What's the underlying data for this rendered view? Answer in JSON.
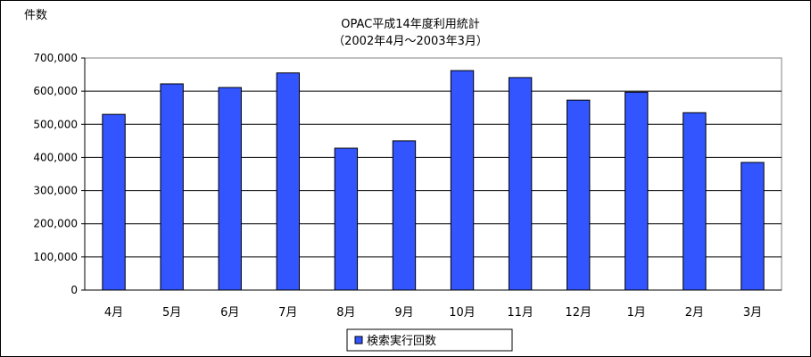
{
  "chart_data": {
    "type": "bar",
    "title": "OPAC平成14年度利用統計",
    "subtitle": "（2002年4月～2003年3月）",
    "ylabel": "件数",
    "xlabel": "",
    "categories": [
      "4月",
      "5月",
      "6月",
      "7月",
      "8月",
      "9月",
      "10月",
      "11月",
      "12月",
      "1月",
      "2月",
      "3月"
    ],
    "series": [
      {
        "name": "検索実行回数",
        "values": [
          530000,
          622000,
          611000,
          655000,
          428000,
          450000,
          662000,
          641000,
          573000,
          597000,
          535000,
          385000
        ]
      }
    ],
    "ylim": [
      0,
      700000
    ],
    "yticks": [
      0,
      100000,
      200000,
      300000,
      400000,
      500000,
      600000,
      700000
    ],
    "ytick_labels": [
      "0",
      "100,000",
      "200,000",
      "300,000",
      "400,000",
      "500,000",
      "600,000",
      "700,000"
    ],
    "grid": true,
    "legend_position": "bottom",
    "colors": {
      "bar": "#3355ff",
      "bar_stroke": "#000000",
      "plot_background": "#ffffff",
      "grid": "#000000"
    }
  }
}
